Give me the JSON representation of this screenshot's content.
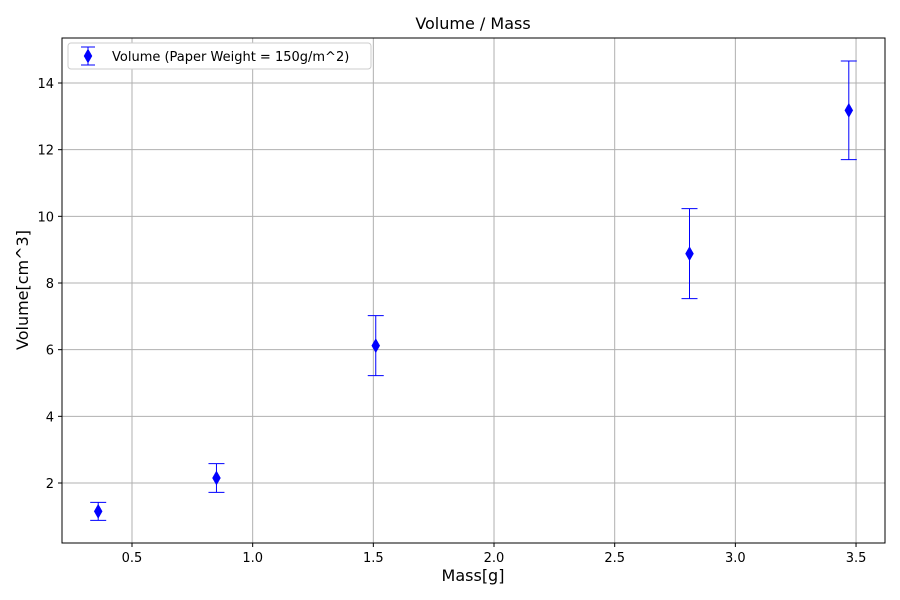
{
  "chart_data": {
    "type": "scatter",
    "title": "Volume / Mass",
    "xlabel": "Mass[g]",
    "ylabel": "Volume[cm^3]",
    "xlim": [
      0.21,
      3.62
    ],
    "ylim": [
      0.2,
      15.35
    ],
    "xticks": [
      0.5,
      1.0,
      1.5,
      2.0,
      2.5,
      3.0,
      3.5
    ],
    "xtick_labels": [
      "0.5",
      "1.0",
      "1.5",
      "2.0",
      "2.5",
      "3.0",
      "3.5"
    ],
    "yticks": [
      2,
      4,
      6,
      8,
      10,
      12,
      14
    ],
    "ytick_labels": [
      "2",
      "4",
      "6",
      "8",
      "10",
      "12",
      "14"
    ],
    "grid": true,
    "legend_position": "upper-left",
    "series": [
      {
        "name": "Volume (Paper Weight = 150g/m^2)",
        "color": "#0000ff",
        "marker": "thin-diamond",
        "x": [
          0.36,
          0.85,
          1.51,
          2.81,
          3.47
        ],
        "y": [
          1.15,
          2.15,
          6.12,
          8.88,
          13.18
        ],
        "yerr": [
          0.27,
          0.43,
          0.9,
          1.35,
          1.48
        ]
      }
    ]
  }
}
